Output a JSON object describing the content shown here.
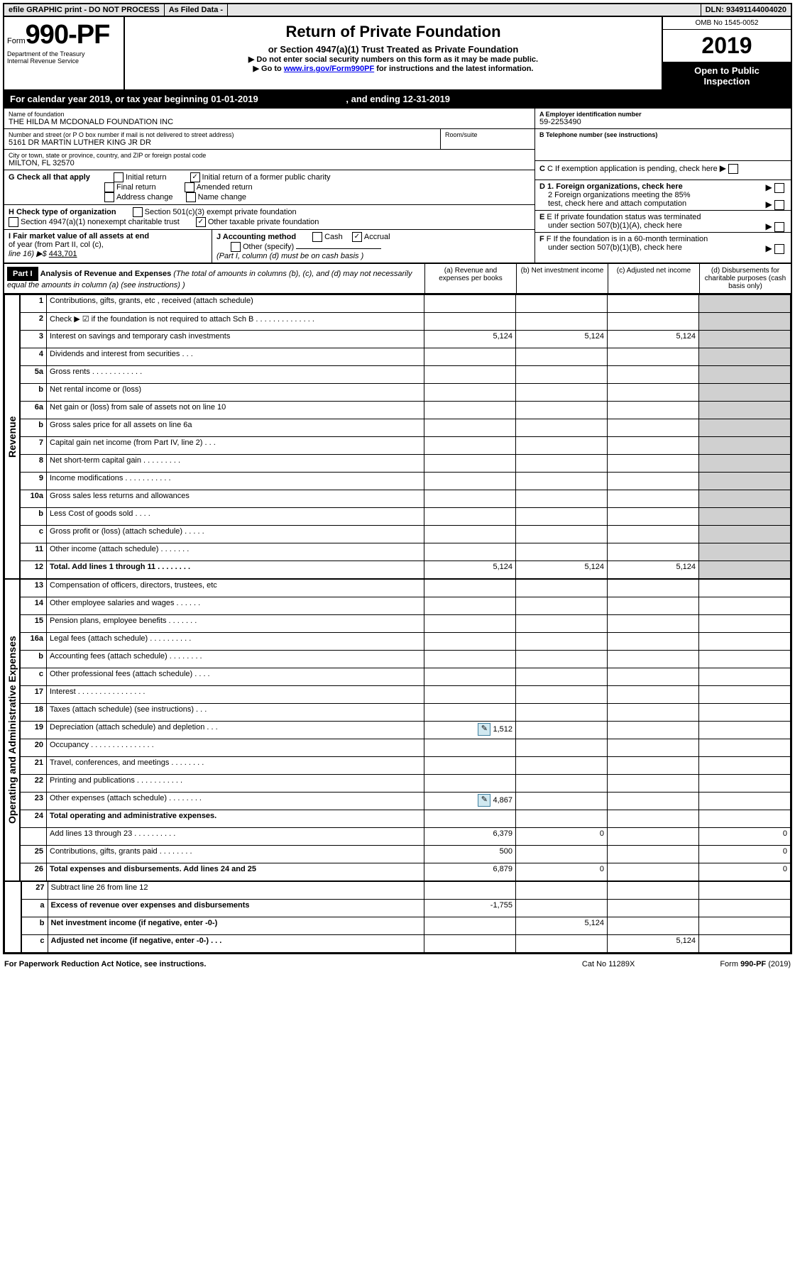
{
  "topbar": {
    "efile": "efile GRAPHIC print - DO NOT PROCESS",
    "asfiled": "As Filed Data -",
    "dln_label": "DLN:",
    "dln": "93491144004020"
  },
  "header": {
    "form_prefix": "Form",
    "form_number": "990-PF",
    "dept1": "Department of the Treasury",
    "dept2": "Internal Revenue Service",
    "title": "Return of Private Foundation",
    "subtitle1": "or Section 4947(a)(1) Trust Treated as Private Foundation",
    "subtitle2": "▶ Do not enter social security numbers on this form as it may be made public.",
    "subtitle3_prefix": "▶ Go to ",
    "subtitle3_link": "www.irs.gov/Form990PF",
    "subtitle3_suffix": " for instructions and the latest information.",
    "omb": "OMB No 1545-0052",
    "year": "2019",
    "inspect1": "Open to Public",
    "inspect2": "Inspection"
  },
  "calyear": {
    "text1": "For calendar year 2019, or tax year beginning ",
    "begin": "01-01-2019",
    "text2": " , and ending ",
    "end": "12-31-2019"
  },
  "entity": {
    "name_label": "Name of foundation",
    "name": "THE HILDA M MCDONALD FOUNDATION INC",
    "addr_label": "Number and street (or P O  box number if mail is not delivered to street address)",
    "addr": "5161 DR MARTIN LUTHER KING JR DR",
    "room_label": "Room/suite",
    "city_label": "City or town, state or province, country, and ZIP or foreign postal code",
    "city": "MILTON, FL  32570",
    "ein_label": "A Employer identification number",
    "ein": "59-2253490",
    "phone_label": "B Telephone number (see instructions)",
    "c_label": "C If exemption application is pending, check here"
  },
  "checks": {
    "g_label": "G Check all that apply",
    "g1": "Initial return",
    "g2": "Initial return of a former public charity",
    "g3": "Final return",
    "g4": "Amended return",
    "g5": "Address change",
    "g6": "Name change",
    "h_label": "H Check type of organization",
    "h1": "Section 501(c)(3) exempt private foundation",
    "h2": "Section 4947(a)(1) nonexempt charitable trust",
    "h3": "Other taxable private foundation",
    "i_label1": "I Fair market value of all assets at end",
    "i_label2": "of year (from Part II, col  (c),",
    "i_label3": "line 16) ▶$  ",
    "i_value": "443,701",
    "j_label": "J Accounting method",
    "j1": "Cash",
    "j2": "Accrual",
    "j3": "Other (specify)",
    "j_note": "(Part I, column (d) must be on cash basis )",
    "d1": "D 1. Foreign organizations, check here",
    "d2a": "2 Foreign organizations meeting the 85%",
    "d2b": "test, check here and attach computation",
    "e1": "E  If private foundation status was terminated",
    "e2": "under section 507(b)(1)(A), check here",
    "f1": "F  If the foundation is in a 60-month termination",
    "f2": "under section 507(b)(1)(B), check here"
  },
  "part1": {
    "label": "Part I",
    "title": "Analysis of Revenue and Expenses",
    "note": " (The total of amounts in columns (b), (c), and (d) may not necessarily equal the amounts in column (a) (see instructions) )",
    "col_a": "(a)    Revenue and expenses per books",
    "col_b": "(b)   Net investment income",
    "col_c": "(c)   Adjusted net income",
    "col_d": "(d)   Disbursements for charitable purposes (cash basis only)"
  },
  "side": {
    "revenue": "Revenue",
    "expenses": "Operating and Administrative Expenses"
  },
  "rows": [
    {
      "n": "1",
      "desc": "Contributions, gifts, grants, etc , received (attach schedule)"
    },
    {
      "n": "2",
      "desc": "Check ▶ ☑ if the foundation is not required to attach Sch  B    .  .  .  .  .  .  .  .  .  .  .  .  .  .",
      "bold_not": true
    },
    {
      "n": "3",
      "desc": "Interest on savings and temporary cash investments",
      "a": "5,124",
      "b": "5,124",
      "c": "5,124"
    },
    {
      "n": "4",
      "desc": "Dividends and interest from securities    .  .  ."
    },
    {
      "n": "5a",
      "desc": "Gross rents    .  .  .  .  .  .  .  .  .  .  .  ."
    },
    {
      "n": "b",
      "desc": "Net rental income or (loss)  "
    },
    {
      "n": "6a",
      "desc": "Net gain or (loss) from sale of assets not on line 10"
    },
    {
      "n": "b",
      "desc": "Gross sales price for all assets on line 6a"
    },
    {
      "n": "7",
      "desc": "Capital gain net income (from Part IV, line 2)   .  .  ."
    },
    {
      "n": "8",
      "desc": "Net short-term capital gain  .  .  .  .  .  .  .  .  ."
    },
    {
      "n": "9",
      "desc": "Income modifications .  .  .  .  .  .  .  .  .  .  ."
    },
    {
      "n": "10a",
      "desc": "Gross sales less returns and allowances"
    },
    {
      "n": "b",
      "desc": "Less  Cost of goods sold   .  .  .  ."
    },
    {
      "n": "c",
      "desc": "Gross profit or (loss) (attach schedule)    .  .  .  .  ."
    },
    {
      "n": "11",
      "desc": "Other income (attach schedule)    .  .  .  .  .  .  ."
    },
    {
      "n": "12",
      "desc": "Total. Add lines 1 through 11   .  .  .  .  .  .  .  .",
      "bold": true,
      "a": "5,124",
      "b": "5,124",
      "c": "5,124"
    }
  ],
  "exp_rows": [
    {
      "n": "13",
      "desc": "Compensation of officers, directors, trustees, etc"
    },
    {
      "n": "14",
      "desc": "Other employee salaries and wages    .  .  .  .  .  ."
    },
    {
      "n": "15",
      "desc": "Pension plans, employee benefits   .  .  .  .  .  .  ."
    },
    {
      "n": "16a",
      "desc": "Legal fees (attach schedule) .  .  .  .  .  .  .  .  .  ."
    },
    {
      "n": "b",
      "desc": "Accounting fees (attach schedule) .  .  .  .  .  .  .  ."
    },
    {
      "n": "c",
      "desc": "Other professional fees (attach schedule)    .  .  .  ."
    },
    {
      "n": "17",
      "desc": "Interest  .  .  .  .  .  .  .  .  .  .  .  .  .  .  .  ."
    },
    {
      "n": "18",
      "desc": "Taxes (attach schedule) (see instructions)     .  .  ."
    },
    {
      "n": "19",
      "desc": "Depreciation (attach schedule) and depletion    .  .  .",
      "attach": true,
      "a": "1,512"
    },
    {
      "n": "20",
      "desc": "Occupancy   .  .  .  .  .  .  .  .  .  .  .  .  .  .  ."
    },
    {
      "n": "21",
      "desc": "Travel, conferences, and meetings .  .  .  .  .  .  .  ."
    },
    {
      "n": "22",
      "desc": "Printing and publications .  .  .  .  .  .  .  .  .  .  ."
    },
    {
      "n": "23",
      "desc": "Other expenses (attach schedule) .  .  .  .  .  .  .  .",
      "attach": true,
      "a": "4,867"
    },
    {
      "n": "24",
      "desc": "Total operating and administrative expenses.",
      "bold": true
    },
    {
      "n": "",
      "desc": "Add lines 13 through 23   .  .  .  .  .  .  .  .  .  .",
      "a": "6,379",
      "b": "0",
      "d": "0"
    },
    {
      "n": "25",
      "desc": "Contributions, gifts, grants paid   .  .  .  .  .  .  .  .",
      "a": "500",
      "d": "0"
    },
    {
      "n": "26",
      "desc": "Total expenses and disbursements. Add lines 24 and 25",
      "bold": true,
      "a": "6,879",
      "b": "0",
      "d": "0"
    }
  ],
  "net_rows": [
    {
      "n": "27",
      "desc": "Subtract line 26 from line 12"
    },
    {
      "n": "a",
      "desc": "Excess of revenue over expenses and disbursements",
      "bold": true,
      "a": "-1,755"
    },
    {
      "n": "b",
      "desc": "Net investment income (if negative, enter -0-)",
      "bold": true,
      "b": "5,124"
    },
    {
      "n": "c",
      "desc": "Adjusted net income (if negative, enter -0-)   .  .  .",
      "bold": true,
      "c": "5,124"
    }
  ],
  "footer": {
    "left": "For Paperwork Reduction Act Notice, see instructions.",
    "mid": "Cat  No  11289X",
    "right": "Form 990-PF (2019)"
  }
}
